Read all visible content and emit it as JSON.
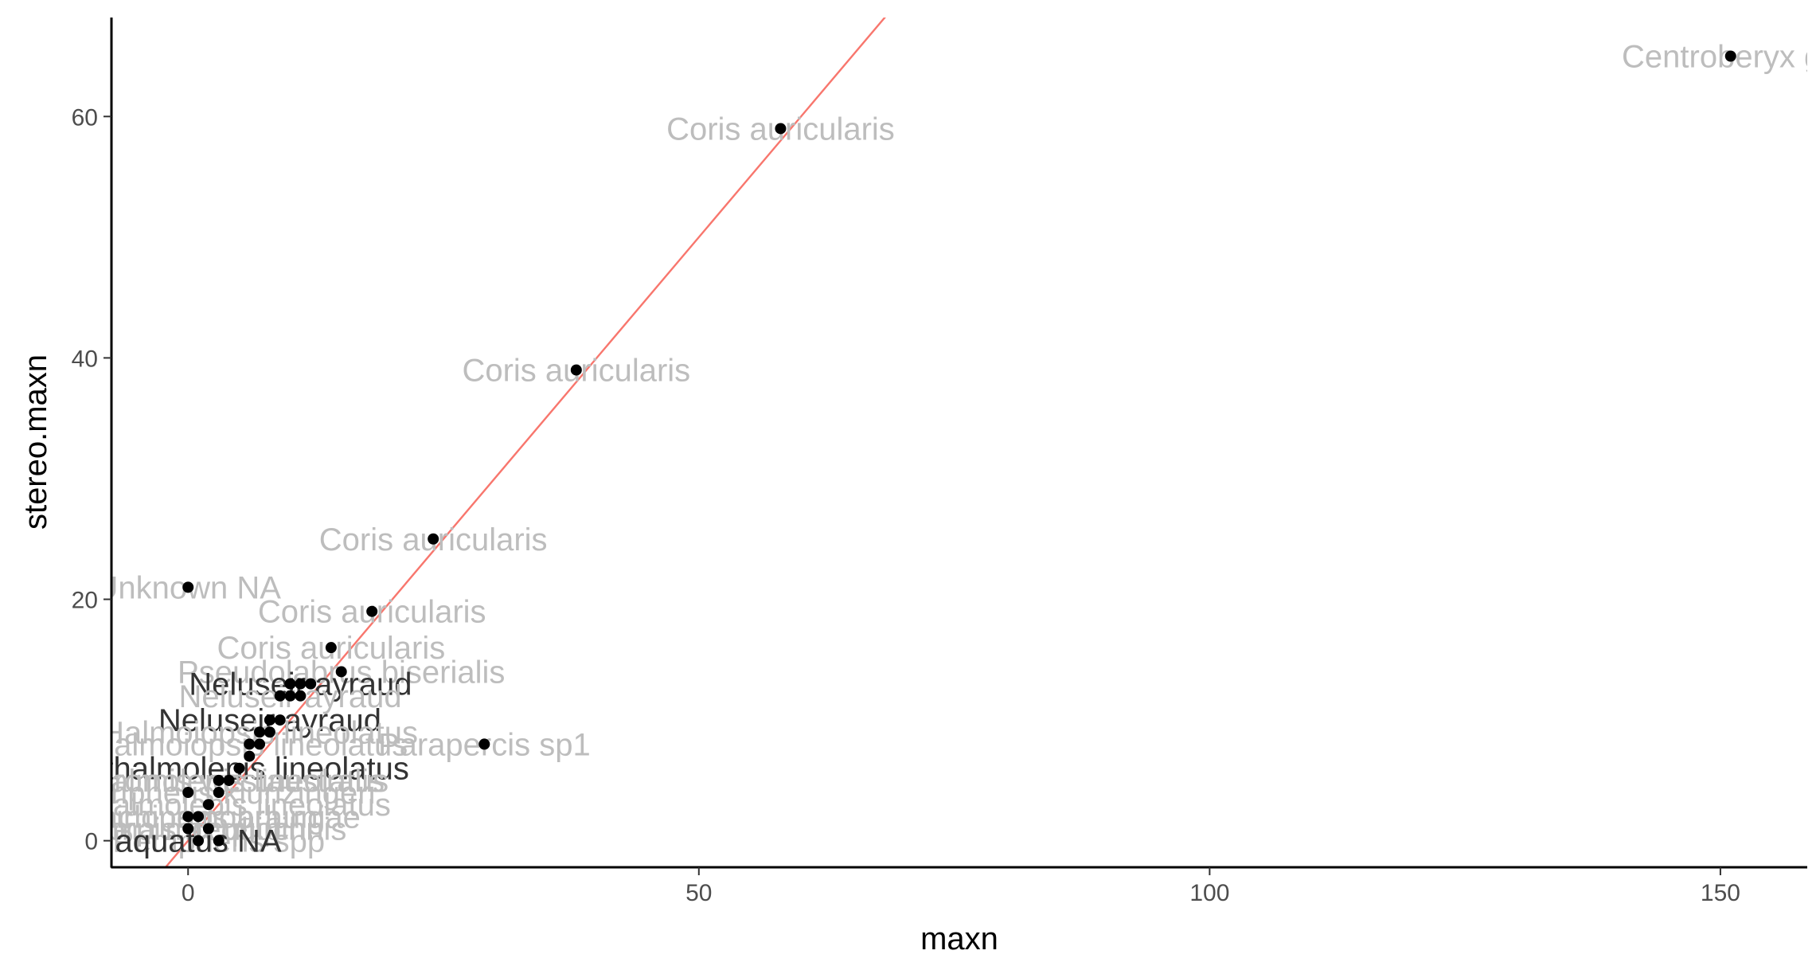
{
  "chart_data": {
    "type": "scatter",
    "title": "",
    "xlabel": "maxn",
    "ylabel": "stereo.maxn",
    "xlim": [
      -7.5,
      158.5
    ],
    "ylim": [
      -2.2,
      68.2
    ],
    "x_ticks": [
      0,
      50,
      100,
      150
    ],
    "y_ticks": [
      0,
      20,
      40,
      60
    ],
    "grid": false,
    "legend": "none",
    "reference_line": {
      "type": "abline",
      "intercept": 0,
      "slope": 1,
      "color": "#F8766D"
    },
    "point_color": "#000000",
    "label_color_faded": "#bdbdbd",
    "label_color_strong": "#333333",
    "points": [
      {
        "x": 151,
        "y": 65
      },
      {
        "x": 58,
        "y": 59
      },
      {
        "x": 38,
        "y": 39
      },
      {
        "x": 24,
        "y": 25
      },
      {
        "x": 18,
        "y": 19
      },
      {
        "x": 14,
        "y": 16
      },
      {
        "x": 15,
        "y": 14
      },
      {
        "x": 0,
        "y": 21
      },
      {
        "x": 29,
        "y": 8
      },
      {
        "x": 10,
        "y": 13
      },
      {
        "x": 11,
        "y": 13
      },
      {
        "x": 12,
        "y": 13
      },
      {
        "x": 9,
        "y": 12
      },
      {
        "x": 10,
        "y": 12
      },
      {
        "x": 11,
        "y": 12
      },
      {
        "x": 8,
        "y": 10
      },
      {
        "x": 9,
        "y": 10
      },
      {
        "x": 7,
        "y": 9
      },
      {
        "x": 8,
        "y": 9
      },
      {
        "x": 6,
        "y": 8
      },
      {
        "x": 7,
        "y": 8
      },
      {
        "x": 6,
        "y": 7
      },
      {
        "x": 5,
        "y": 6
      },
      {
        "x": 3,
        "y": 5
      },
      {
        "x": 4,
        "y": 5
      },
      {
        "x": 0,
        "y": 4
      },
      {
        "x": 3,
        "y": 4
      },
      {
        "x": 2,
        "y": 3
      },
      {
        "x": 0,
        "y": 2
      },
      {
        "x": 1,
        "y": 2
      },
      {
        "x": 0,
        "y": 1
      },
      {
        "x": 2,
        "y": 1
      },
      {
        "x": 1,
        "y": 0
      },
      {
        "x": 3,
        "y": 0
      }
    ],
    "annotations": [
      {
        "text": "Centroberyx ge",
        "x": 151,
        "y": 65,
        "anchor": "middle",
        "strong": false
      },
      {
        "text": "Coris auricularis",
        "x": 58,
        "y": 59,
        "anchor": "middle",
        "strong": false
      },
      {
        "text": "Coris auricularis",
        "x": 38,
        "y": 39,
        "anchor": "middle",
        "strong": false
      },
      {
        "text": "Coris auricularis",
        "x": 24,
        "y": 25,
        "anchor": "middle",
        "strong": false
      },
      {
        "text": "Coris auricularis",
        "x": 18,
        "y": 19,
        "anchor": "middle",
        "strong": false
      },
      {
        "text": "Coris auricularis",
        "x": 14,
        "y": 16,
        "anchor": "middle",
        "strong": false
      },
      {
        "text": "Unknown NA",
        "x": 0,
        "y": 21,
        "anchor": "middle",
        "strong": false
      },
      {
        "text": "Parapercis sp1",
        "x": 29,
        "y": 8,
        "anchor": "middle",
        "strong": false
      },
      {
        "text": "Pseudolabrus biserialis",
        "x": 15,
        "y": 14,
        "anchor": "middle",
        "strong": false
      },
      {
        "text": "Neluseir ayraud",
        "x": 11,
        "y": 13,
        "anchor": "middle",
        "strong": true
      },
      {
        "text": "Neluseir ayraud",
        "x": 10,
        "y": 12,
        "anchor": "middle",
        "strong": false
      },
      {
        "text": "Neluseir ayraud",
        "x": 8,
        "y": 10,
        "anchor": "middle",
        "strong": true
      },
      {
        "text": "Halmoiopsis lineolatus",
        "x": 7,
        "y": 9,
        "anchor": "middle",
        "strong": false
      },
      {
        "text": "Halmoiopsis lineolatus",
        "x": 6,
        "y": 8,
        "anchor": "middle",
        "strong": false
      },
      {
        "text": "ohthalmolepis lineolatus",
        "x": 5,
        "y": 6,
        "anchor": "middle",
        "strong": true
      },
      {
        "text": "ohthalmolepis lineolatus",
        "x": 3,
        "y": 5,
        "anchor": "middle",
        "strong": false
      },
      {
        "text": "Ophthalmolepis lineolatus",
        "x": 2,
        "y": 3,
        "anchor": "middle",
        "strong": false
      },
      {
        "text": "Pempheris klunzingeri",
        "x": 3,
        "y": 4,
        "anchor": "middle",
        "strong": false
      },
      {
        "text": "Trachinops brauni",
        "x": 1,
        "y": 2,
        "anchor": "middle",
        "strong": false
      },
      {
        "text": "Trachinops noarlungae",
        "x": 1,
        "y": 2,
        "anchor": "middle",
        "strong": false
      },
      {
        "text": "Parma mccullochi",
        "x": 0,
        "y": 1,
        "anchor": "middle",
        "strong": false
      },
      {
        "text": "Scorpis aequipinnis",
        "x": 2,
        "y": 1,
        "anchor": "middle",
        "strong": false
      },
      {
        "text": "Chromis westaustralis",
        "x": 4,
        "y": 5,
        "anchor": "middle",
        "strong": false
      },
      {
        "text": "Pempheris spp",
        "x": 3,
        "y": 0,
        "anchor": "middle",
        "strong": false
      },
      {
        "text": "aquatus NA",
        "x": 1,
        "y": 0,
        "anchor": "middle",
        "strong": true
      }
    ]
  }
}
